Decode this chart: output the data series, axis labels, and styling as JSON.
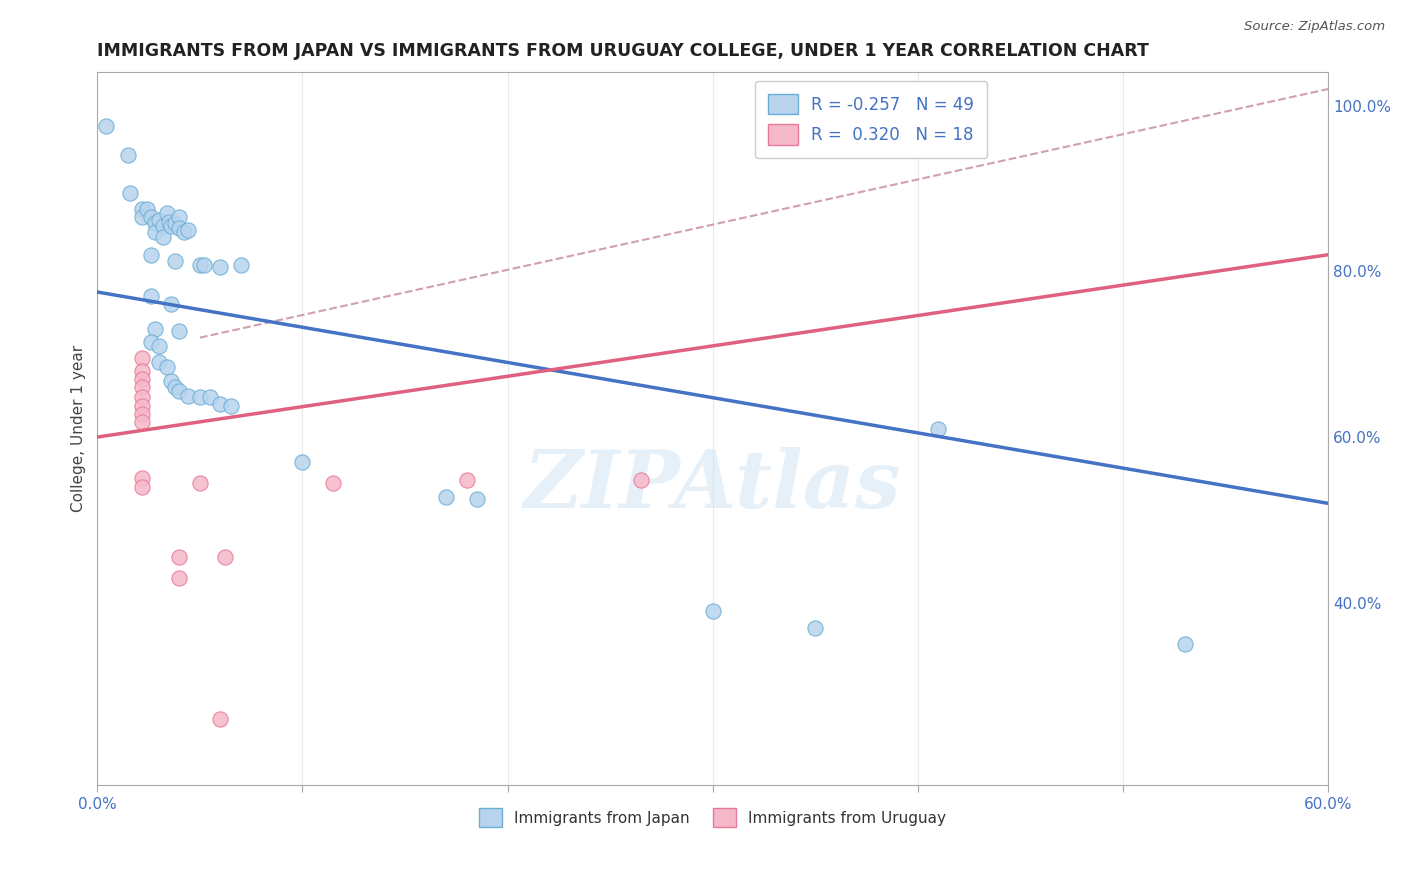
{
  "title": "IMMIGRANTS FROM JAPAN VS IMMIGRANTS FROM URUGUAY COLLEGE, UNDER 1 YEAR CORRELATION CHART",
  "source": "Source: ZipAtlas.com",
  "ylabel": "College, Under 1 year",
  "xmin": 0.0,
  "xmax": 0.6,
  "ymin": 0.18,
  "ymax": 1.04,
  "legend_japan_R": "-0.257",
  "legend_japan_N": "49",
  "legend_uruguay_R": "0.320",
  "legend_uruguay_N": "18",
  "japan_color": "#b8d4ed",
  "uruguay_color": "#f5b8c8",
  "japan_edge_color": "#6aaed6",
  "uruguay_edge_color": "#e87898",
  "japan_line_color": "#4472c4",
  "uruguay_line_color": "#e06080",
  "trendline_dashed_color": "#d0a0b0",
  "right_yticks": [
    1.0,
    0.8,
    0.6,
    0.4
  ],
  "japan_scatter": [
    [
      0.004,
      0.975
    ],
    [
      0.015,
      0.94
    ],
    [
      0.016,
      0.895
    ],
    [
      0.022,
      0.875
    ],
    [
      0.022,
      0.865
    ],
    [
      0.024,
      0.875
    ],
    [
      0.026,
      0.865
    ],
    [
      0.028,
      0.858
    ],
    [
      0.028,
      0.848
    ],
    [
      0.03,
      0.862
    ],
    [
      0.032,
      0.855
    ],
    [
      0.032,
      0.842
    ],
    [
      0.034,
      0.87
    ],
    [
      0.035,
      0.86
    ],
    [
      0.036,
      0.855
    ],
    [
      0.038,
      0.858
    ],
    [
      0.04,
      0.865
    ],
    [
      0.04,
      0.852
    ],
    [
      0.042,
      0.848
    ],
    [
      0.044,
      0.85
    ],
    [
      0.026,
      0.82
    ],
    [
      0.038,
      0.812
    ],
    [
      0.05,
      0.808
    ],
    [
      0.052,
      0.808
    ],
    [
      0.06,
      0.805
    ],
    [
      0.07,
      0.808
    ],
    [
      0.026,
      0.77
    ],
    [
      0.036,
      0.76
    ],
    [
      0.028,
      0.73
    ],
    [
      0.04,
      0.728
    ],
    [
      0.026,
      0.715
    ],
    [
      0.03,
      0.71
    ],
    [
      0.03,
      0.69
    ],
    [
      0.034,
      0.685
    ],
    [
      0.036,
      0.668
    ],
    [
      0.038,
      0.66
    ],
    [
      0.04,
      0.655
    ],
    [
      0.044,
      0.65
    ],
    [
      0.05,
      0.648
    ],
    [
      0.055,
      0.648
    ],
    [
      0.06,
      0.64
    ],
    [
      0.065,
      0.638
    ],
    [
      0.1,
      0.57
    ],
    [
      0.17,
      0.528
    ],
    [
      0.185,
      0.525
    ],
    [
      0.3,
      0.39
    ],
    [
      0.35,
      0.37
    ],
    [
      0.41,
      0.61
    ],
    [
      0.53,
      0.35
    ]
  ],
  "uruguay_scatter": [
    [
      0.022,
      0.695
    ],
    [
      0.022,
      0.68
    ],
    [
      0.022,
      0.67
    ],
    [
      0.022,
      0.66
    ],
    [
      0.022,
      0.648
    ],
    [
      0.022,
      0.638
    ],
    [
      0.022,
      0.628
    ],
    [
      0.022,
      0.618
    ],
    [
      0.022,
      0.55
    ],
    [
      0.022,
      0.54
    ],
    [
      0.05,
      0.545
    ],
    [
      0.115,
      0.545
    ],
    [
      0.18,
      0.548
    ],
    [
      0.265,
      0.548
    ],
    [
      0.04,
      0.455
    ],
    [
      0.062,
      0.455
    ],
    [
      0.04,
      0.43
    ],
    [
      0.06,
      0.26
    ]
  ],
  "watermark": "ZIPAtlas"
}
